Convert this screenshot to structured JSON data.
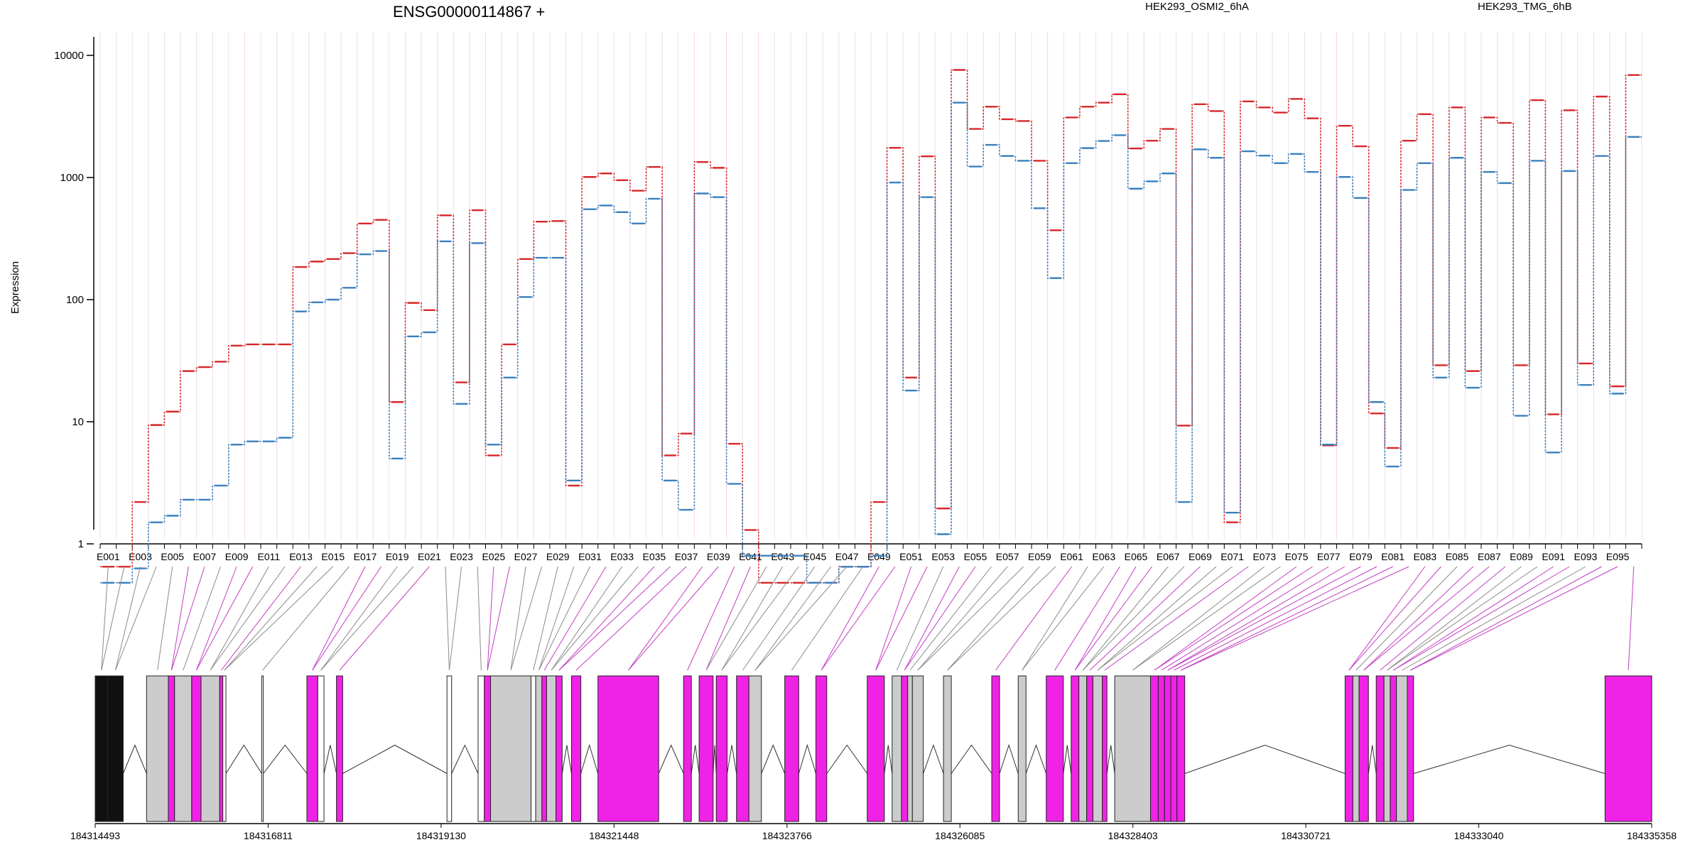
{
  "chart_data": {
    "type": "line",
    "title": "ENSG00000114867 +",
    "ylabel": "Expression",
    "y_scale": "log",
    "y_ticks": [
      "1",
      "10",
      "100",
      "1000",
      "10000"
    ],
    "x_tick_labels": [
      "E001",
      "E003",
      "E005",
      "E007",
      "E009",
      "E011",
      "E013",
      "E015",
      "E017",
      "E019",
      "E021",
      "E023",
      "E025",
      "E027",
      "E029",
      "E031",
      "E033",
      "E035",
      "E037",
      "E039",
      "E041",
      "E043",
      "E045",
      "E047",
      "E049",
      "E051",
      "E053",
      "E055",
      "E057",
      "E059",
      "E061",
      "E063",
      "E065",
      "E067",
      "E069",
      "E071",
      "E073",
      "E075",
      "E077",
      "E079",
      "E081",
      "E083",
      "E085",
      "E087",
      "E089",
      "E091",
      "E093",
      "E095"
    ],
    "n_exons": 96,
    "series": [
      {
        "name": "HEK293_OSMI2_6hA",
        "color": "#d62728",
        "values": [
          0.65,
          0.65,
          2.2,
          9.4,
          12.1,
          26,
          28,
          31,
          42,
          43,
          43,
          43,
          185,
          205,
          215,
          240,
          420,
          450,
          14.5,
          94,
          82,
          490,
          21,
          540,
          5.3,
          43,
          215,
          435,
          440,
          3.0,
          1010,
          1080,
          950,
          780,
          1220,
          5.3,
          8,
          1340,
          1200,
          6.6,
          1.3,
          0.48,
          0.48,
          0.48,
          0.48,
          0.48,
          0.65,
          0.65,
          2.2,
          1750,
          23,
          1490,
          1.95,
          7600,
          2500,
          3800,
          3000,
          2900,
          1370,
          370,
          3100,
          3800,
          4100,
          4800,
          1730,
          2000,
          2500,
          9.3,
          3980,
          3500,
          1.5,
          4200,
          3750,
          3400,
          4400,
          3050,
          6.4,
          2650,
          1800,
          11.7,
          6.1,
          2000,
          3300,
          29,
          3750,
          26,
          3100,
          2800,
          29,
          4300,
          11.5,
          3550,
          30,
          4600,
          19.5,
          6900
        ]
      },
      {
        "name": "HEK293_TMG_6hB",
        "color": "#3a7fbd",
        "values": [
          0.48,
          0.48,
          0.63,
          1.5,
          1.7,
          2.3,
          2.3,
          3.0,
          6.5,
          6.9,
          6.9,
          7.4,
          80,
          95,
          100,
          125,
          235,
          250,
          5.0,
          50,
          54,
          300,
          14,
          290,
          6.5,
          23,
          105,
          220,
          220,
          3.3,
          550,
          590,
          520,
          420,
          670,
          3.3,
          1.9,
          740,
          690,
          3.1,
          0.8,
          0.8,
          0.8,
          0.8,
          0.48,
          0.48,
          0.65,
          0.65,
          0.8,
          910,
          18,
          690,
          1.2,
          4100,
          1230,
          1850,
          1500,
          1370,
          560,
          150,
          1310,
          1740,
          1990,
          2220,
          810,
          930,
          1080,
          2.2,
          1700,
          1450,
          1.8,
          1640,
          1510,
          1310,
          1560,
          1110,
          6.5,
          1010,
          680,
          14.5,
          4.3,
          790,
          1310,
          23,
          1450,
          19,
          1110,
          900,
          11.2,
          1370,
          5.6,
          1130,
          20,
          1500,
          17,
          2150
        ]
      }
    ],
    "gene_model": {
      "coordinate_ticks": [
        "184314493",
        "184316811",
        "184319130",
        "184321448",
        "184323766",
        "184326085",
        "184328403",
        "184330721",
        "184333040",
        "184335358"
      ],
      "colors": {
        "highlight": "#f022e6",
        "other": "#cccccc"
      }
    }
  }
}
